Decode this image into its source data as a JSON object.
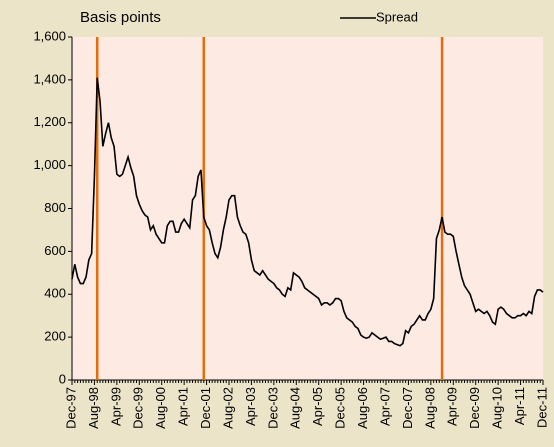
{
  "chart_data": {
    "type": "line",
    "y_label": "Basis points",
    "categories": [
      "Dec-97",
      null,
      null,
      null,
      null,
      null,
      null,
      null,
      "Aug-98",
      null,
      null,
      null,
      null,
      null,
      null,
      null,
      "Apr-99",
      null,
      null,
      null,
      null,
      null,
      null,
      null,
      "Dec-99",
      null,
      null,
      null,
      null,
      null,
      null,
      null,
      "Aug-00",
      null,
      null,
      null,
      null,
      null,
      null,
      null,
      "Apr-01",
      null,
      null,
      null,
      null,
      null,
      null,
      null,
      "Dec-01",
      null,
      null,
      null,
      null,
      null,
      null,
      null,
      "Aug-02",
      null,
      null,
      null,
      null,
      null,
      null,
      null,
      "Apr-03",
      null,
      null,
      null,
      null,
      null,
      null,
      null,
      "Dec-03",
      null,
      null,
      null,
      null,
      null,
      null,
      null,
      "Aug-04",
      null,
      null,
      null,
      null,
      null,
      null,
      null,
      "Apr-05",
      null,
      null,
      null,
      null,
      null,
      null,
      null,
      "Dec-05",
      null,
      null,
      null,
      null,
      null,
      null,
      null,
      "Aug-06",
      null,
      null,
      null,
      null,
      null,
      null,
      null,
      "Apr-07",
      null,
      null,
      null,
      null,
      null,
      null,
      null,
      "Dec-07",
      null,
      null,
      null,
      null,
      null,
      null,
      null,
      "Aug-08",
      null,
      null,
      null,
      null,
      null,
      null,
      null,
      "Apr-09",
      null,
      null,
      null,
      null,
      null,
      null,
      null,
      "Dec-09",
      null,
      null,
      null,
      null,
      null,
      null,
      null,
      "Aug-10",
      null,
      null,
      null,
      null,
      null,
      null,
      null,
      "Apr-11",
      null,
      null,
      null,
      null,
      null,
      null,
      null,
      "Dec-11"
    ],
    "series": [
      {
        "name": "Spread",
        "color": "#000000",
        "values": [
          470,
          540,
          480,
          450,
          450,
          480,
          560,
          590,
          950,
          1410,
          1300,
          1090,
          1150,
          1200,
          1130,
          1090,
          960,
          950,
          960,
          1000,
          1040,
          990,
          950,
          860,
          820,
          790,
          770,
          760,
          700,
          720,
          680,
          660,
          640,
          640,
          720,
          740,
          740,
          690,
          690,
          730,
          750,
          730,
          710,
          840,
          860,
          950,
          980,
          760,
          720,
          700,
          640,
          590,
          570,
          620,
          700,
          760,
          840,
          860,
          860,
          760,
          720,
          690,
          680,
          640,
          560,
          510,
          500,
          490,
          510,
          490,
          470,
          460,
          450,
          430,
          420,
          400,
          390,
          430,
          420,
          500,
          490,
          480,
          460,
          430,
          420,
          410,
          400,
          390,
          380,
          350,
          360,
          360,
          350,
          360,
          380,
          380,
          370,
          320,
          290,
          280,
          270,
          250,
          240,
          210,
          200,
          195,
          200,
          220,
          210,
          200,
          190,
          195,
          200,
          180,
          180,
          170,
          165,
          160,
          170,
          230,
          220,
          250,
          260,
          280,
          300,
          280,
          280,
          310,
          330,
          380,
          660,
          700,
          760,
          690,
          680,
          680,
          670,
          600,
          540,
          480,
          440,
          420,
          400,
          360,
          320,
          330,
          320,
          310,
          320,
          300,
          270,
          260,
          330,
          340,
          330,
          310,
          300,
          290,
          290,
          300,
          300,
          310,
          300,
          320,
          310,
          390,
          420,
          420,
          410
        ]
      }
    ],
    "event_lines": [
      9,
      47,
      132
    ],
    "event_color": "#e46c0a",
    "ylim": [
      0,
      1600
    ],
    "yticks": [
      0,
      200,
      400,
      600,
      800,
      {
        "value": 1000,
        "label": "1,000"
      },
      {
        "value": 1200,
        "label": "1,200"
      },
      {
        "value": 1400,
        "label": "1,400"
      },
      {
        "value": 1600,
        "label": "1,600"
      }
    ],
    "grid": false
  }
}
